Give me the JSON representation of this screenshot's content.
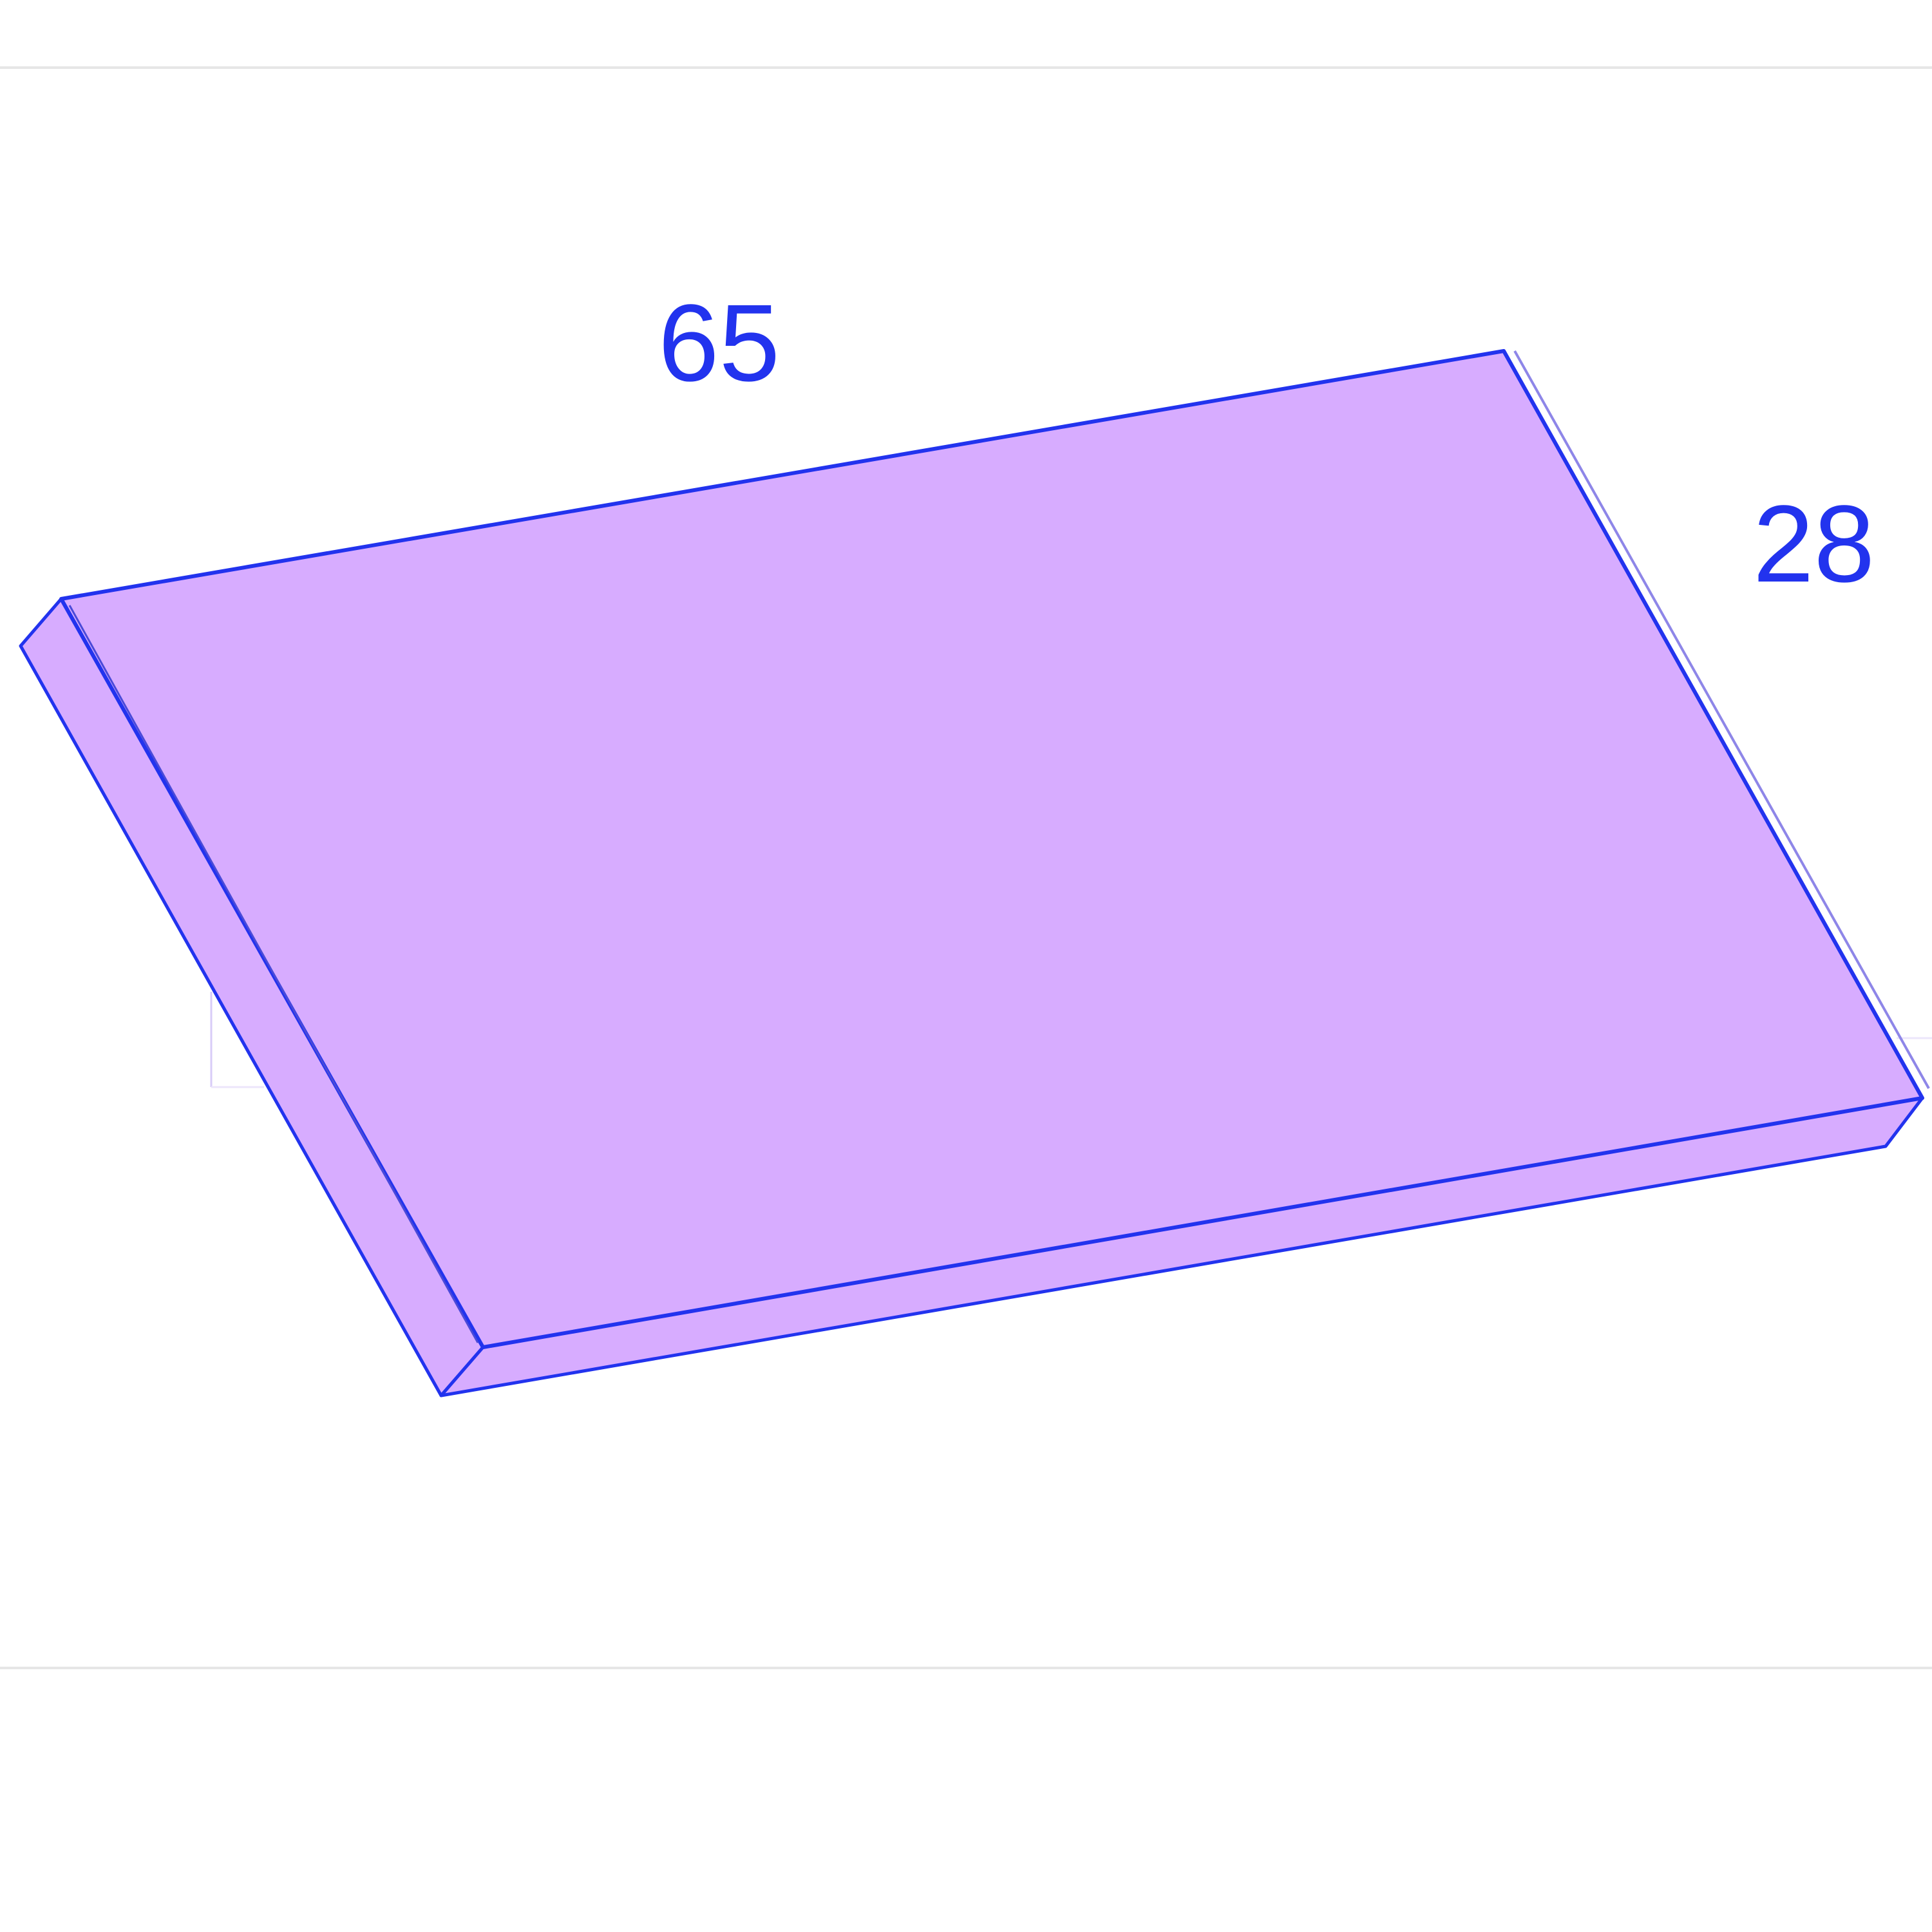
{
  "figure": {
    "dimensions": {
      "length": "65",
      "width": "28"
    },
    "colors": {
      "face": "#d7acff",
      "edge": "#2233ee",
      "label": "#2233ee",
      "guide": "#e6e6e6"
    }
  }
}
